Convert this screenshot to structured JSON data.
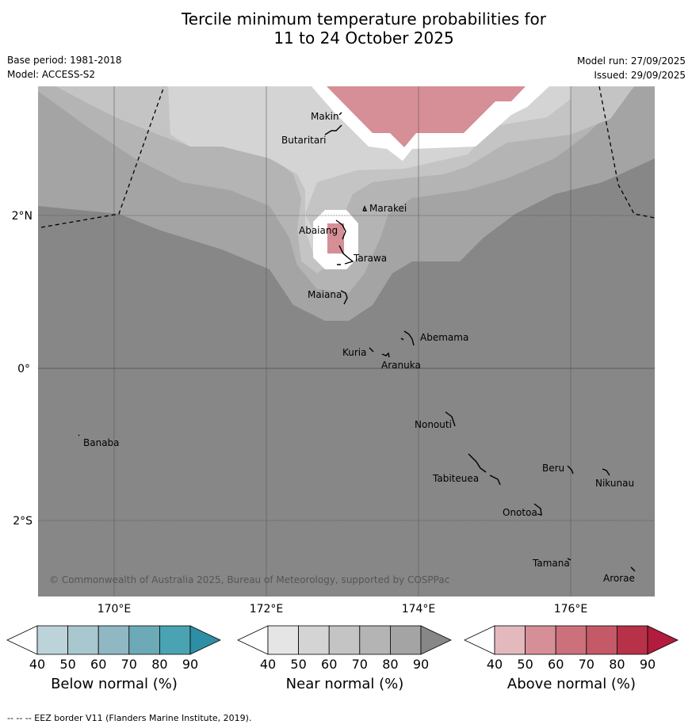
{
  "title": {
    "line1": "Tercile minimum temperature probabilities for",
    "line2": "11 to 24 October 2025"
  },
  "meta": {
    "base_period": "Base period: 1981-2018",
    "model": "Model: ACCESS-S2",
    "model_run": "Model run: 27/09/2025",
    "issued": "Issued: 29/09/2025"
  },
  "map": {
    "lat_labels": [
      "2°N",
      "0°",
      "2°S"
    ],
    "lon_labels": [
      "170°E",
      "172°E",
      "174°E",
      "176°E"
    ],
    "places": [
      "Makin",
      "Butaritari",
      "Marakei",
      "Abaiang",
      "Tarawa",
      "Maiana",
      "Abemama",
      "Kuria",
      "Aranuka",
      "Nonouti",
      "Banaba",
      "Beru",
      "Tabiteuea",
      "Nikunau",
      "Onotoa",
      "Tamana",
      "Arorae"
    ],
    "copyright": "© Commonwealth of Australia 2025, Bureau of Meteorology, supported by COSPPac"
  },
  "legends": [
    {
      "label": "Below normal (%)",
      "ticks": [
        "40",
        "50",
        "60",
        "70",
        "80",
        "90"
      ],
      "colors": [
        "#ffffff",
        "#bdd3da",
        "#a8c7ce",
        "#8fb8c3",
        "#6daab7",
        "#4aa3b2",
        "#2e8ea3"
      ]
    },
    {
      "label": "Near normal (%)",
      "ticks": [
        "40",
        "50",
        "60",
        "70",
        "80",
        "90"
      ],
      "colors": [
        "#ffffff",
        "#e5e5e5",
        "#d4d4d4",
        "#c4c4c4",
        "#b4b4b4",
        "#a4a4a4",
        "#878787"
      ]
    },
    {
      "label": "Above normal (%)",
      "ticks": [
        "40",
        "50",
        "60",
        "70",
        "80",
        "90"
      ],
      "colors": [
        "#ffffff",
        "#e3b9be",
        "#d68f96",
        "#cc717b",
        "#c45a67",
        "#b73249",
        "#b21c3d"
      ]
    }
  ],
  "footer": "--  --  -- EEZ border V11 (Flanders Marine Institute, 2019)."
}
